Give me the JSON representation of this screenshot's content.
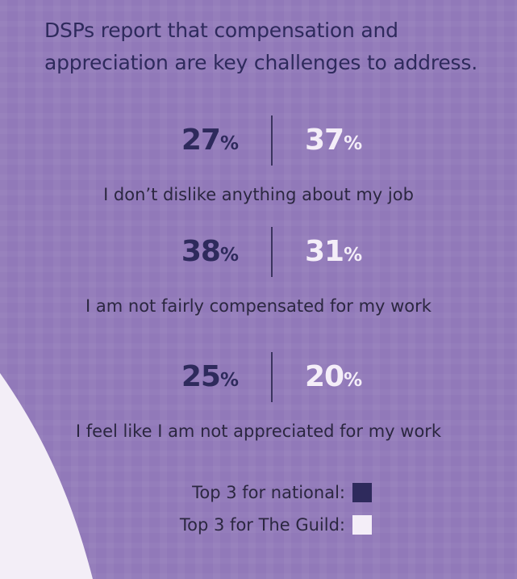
{
  "title": "DSPs report that compensation and appreciation are key challenges to address.",
  "percent_sign": "%",
  "chart_data": {
    "type": "table",
    "title": "DSPs report that compensation and appreciation are key challenges to address.",
    "columns": [
      "Top 3 for national",
      "Top 3 for The Guild"
    ],
    "rows": [
      {
        "label": "I don’t dislike anything about my job",
        "national": 27,
        "guild": 37
      },
      {
        "label": "I am not fairly compensated for my work",
        "national": 38,
        "guild": 31
      },
      {
        "label": "I feel like I am not appreciated for my work",
        "national": 25,
        "guild": 20
      }
    ],
    "unit": "%"
  },
  "legend": [
    {
      "label": "Top 3 for national:",
      "color": "#2e2a5c"
    },
    {
      "label": "Top 3 for The Guild:",
      "color": "#f4eef8"
    }
  ],
  "colors": {
    "background": "#9179b9",
    "national": "#2e2a5c",
    "guild": "#f4eef8",
    "corner": "#f3eef7"
  }
}
